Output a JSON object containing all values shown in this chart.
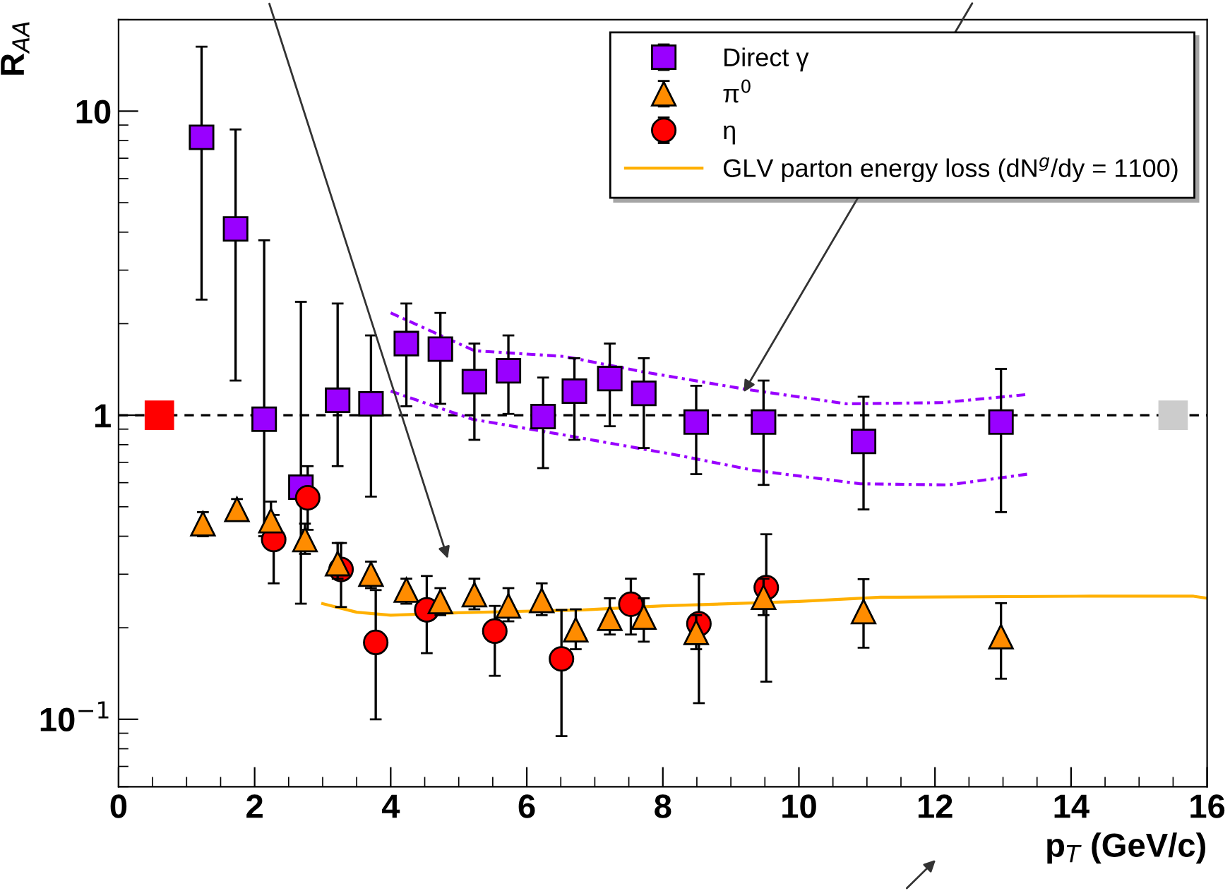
{
  "chart_data": {
    "type": "scatter",
    "xlabel": "p$_{T}$ (GeV/c)",
    "ylabel": "R$_{AA}$",
    "xlim": [
      0,
      16
    ],
    "xticks": [
      0,
      2,
      4,
      6,
      8,
      10,
      12,
      14,
      16
    ],
    "ylim": [
      0.06,
      20
    ],
    "log": true,
    "yticks": [
      {
        "value": 0.1,
        "label": "10$^{−1}$"
      },
      1,
      10
    ],
    "grid": false,
    "legend": "top right",
    "ref_lines": [
      {
        "axis": "y",
        "value": 1,
        "color": "#000000",
        "line_style": "dashed"
      }
    ],
    "series": [
      {
        "name": "Direct γ",
        "marker": "square",
        "color": "#9900ff",
        "x": [
          1.22,
          1.72,
          2.14,
          2.68,
          3.22,
          3.71,
          4.23,
          4.73,
          5.23,
          5.73,
          6.24,
          6.7,
          7.22,
          7.72,
          8.49,
          9.48,
          10.95,
          12.97
        ],
        "values": [
          8.2,
          4.1,
          0.97,
          0.58,
          1.12,
          1.09,
          1.72,
          1.65,
          1.29,
          1.4,
          0.99,
          1.2,
          1.32,
          1.18,
          0.95,
          0.95,
          0.82,
          0.95
        ],
        "errors": [
          [
            2.4,
            16.3
          ],
          [
            1.3,
            8.7
          ],
          [
            0.4,
            3.76
          ],
          [
            0.24,
            2.36
          ],
          [
            0.68,
            2.33
          ],
          [
            0.54,
            1.83
          ],
          [
            1.07,
            2.33
          ],
          [
            1.09,
            2.17
          ],
          [
            0.83,
            1.72
          ],
          [
            1.01,
            1.83
          ],
          [
            0.67,
            1.33
          ],
          [
            0.83,
            1.54
          ],
          [
            0.92,
            1.72
          ],
          [
            0.78,
            1.54
          ],
          [
            0.64,
            1.25
          ],
          [
            0.59,
            1.3
          ],
          [
            0.49,
            1.15
          ],
          [
            0.48,
            1.42
          ]
        ]
      },
      {
        "name": "π$^{0}$",
        "marker": "triangle",
        "color": "#ff8c00",
        "x": [
          1.24,
          1.74,
          2.24,
          2.74,
          3.22,
          3.71,
          4.23,
          4.73,
          5.23,
          5.73,
          6.22,
          6.72,
          7.22,
          7.72,
          8.49,
          9.48,
          10.95,
          12.97
        ],
        "values": [
          0.44,
          0.49,
          0.45,
          0.39,
          0.325,
          0.3,
          0.266,
          0.244,
          0.257,
          0.236,
          0.246,
          0.197,
          0.215,
          0.217,
          0.193,
          0.252,
          0.226,
          0.187
        ],
        "errors": [
          [
            0.4,
            0.48
          ],
          [
            0.45,
            0.53
          ],
          [
            0.45,
            0.52
          ],
          [
            0.35,
            0.44
          ],
          [
            0.29,
            0.38
          ],
          [
            0.27,
            0.33
          ],
          [
            0.24,
            0.29
          ],
          [
            0.22,
            0.27
          ],
          [
            0.23,
            0.29
          ],
          [
            0.21,
            0.27
          ],
          [
            0.22,
            0.28
          ],
          [
            0.17,
            0.23
          ],
          [
            0.19,
            0.25
          ],
          [
            0.18,
            0.25
          ],
          [
            0.17,
            0.22
          ],
          [
            0.22,
            0.29
          ],
          [
            0.172,
            0.289
          ],
          [
            0.136,
            0.241
          ]
        ]
      },
      {
        "name": "η",
        "marker": "circle",
        "color": "#ff0000",
        "x": [
          2.28,
          2.78,
          3.27,
          3.78,
          4.53,
          5.53,
          6.51,
          7.53,
          8.53,
          9.52
        ],
        "values": [
          0.39,
          0.535,
          0.311,
          0.179,
          0.229,
          0.195,
          0.158,
          0.239,
          0.206,
          0.271
        ],
        "errors": [
          [
            0.28,
            0.47
          ],
          [
            0.42,
            0.68
          ],
          [
            0.234,
            0.38
          ],
          [
            0.1,
            0.266
          ],
          [
            0.165,
            0.296
          ],
          [
            0.139,
            0.236
          ],
          [
            0.088,
            0.229
          ],
          [
            0.19,
            0.29
          ],
          [
            0.113,
            0.3
          ],
          [
            0.133,
            0.406
          ]
        ]
      },
      {
        "name": "GLV parton energy loss (dN$^{g}$/dy = 1100)",
        "type": "line",
        "marker": "none",
        "line_style": "solid",
        "color": "#ffb000",
        "x": [
          3.0,
          3.5,
          4.0,
          5.0,
          6.83,
          8.0,
          10.0,
          11.2,
          14.27,
          15.8,
          16.0
        ],
        "values": [
          0.24,
          0.225,
          0.22,
          0.224,
          0.229,
          0.236,
          0.244,
          0.252,
          0.254,
          0.254,
          0.25
        ]
      },
      {
        "type": "line",
        "marker": "none",
        "line_style": "dashed",
        "color": "#9900ff",
        "x": [
          4.0,
          5.23,
          6.56,
          7.7,
          9.19,
          10.7,
          12.1,
          13.36
        ],
        "values": [
          2.17,
          1.63,
          1.56,
          1.39,
          1.22,
          1.09,
          1.1,
          1.17
        ]
      },
      {
        "type": "line",
        "marker": "none",
        "line_style": "dashed",
        "color": "#9900ff",
        "x": [
          4.0,
          5.2,
          6.56,
          8.2,
          9.32,
          10.9,
          12.2,
          13.36
        ],
        "values": [
          1.2,
          0.97,
          0.86,
          0.74,
          0.66,
          0.595,
          0.59,
          0.64
        ]
      },
      {
        "marker": "square",
        "color": "#ff0000",
        "x": [
          0.6
        ],
        "values": [
          1
        ]
      },
      {
        "marker": "square",
        "color": "#cccccc",
        "x": [
          15.5
        ],
        "values": [
          1
        ]
      }
    ]
  }
}
